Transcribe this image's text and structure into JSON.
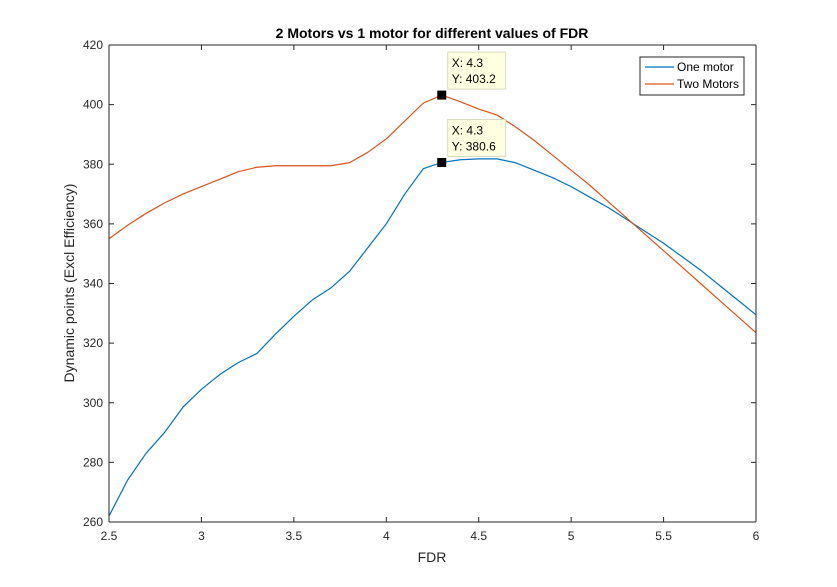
{
  "chart_data": {
    "type": "line",
    "title": "2 Motors vs 1 motor for different values of FDR",
    "xlabel": "FDR",
    "ylabel": "Dynamic points (Excl Efficiency)",
    "xlim": [
      2.5,
      6
    ],
    "ylim": [
      260,
      420
    ],
    "xticks": [
      2.5,
      3,
      3.5,
      4,
      4.5,
      5,
      5.5,
      6
    ],
    "xtick_labels": [
      "2.5",
      "3",
      "3.5",
      "4",
      "4.5",
      "5",
      "5.5",
      "6"
    ],
    "yticks": [
      260,
      280,
      300,
      320,
      340,
      360,
      380,
      400,
      420
    ],
    "ytick_labels": [
      "260",
      "280",
      "300",
      "320",
      "340",
      "360",
      "380",
      "400",
      "420"
    ],
    "grid": false,
    "legend_position": "top-right",
    "x": [
      2.5,
      2.6,
      2.7,
      2.8,
      2.9,
      3.0,
      3.1,
      3.2,
      3.3,
      3.4,
      3.5,
      3.6,
      3.7,
      3.8,
      3.9,
      4.0,
      4.1,
      4.2,
      4.3,
      4.4,
      4.5,
      4.6,
      4.7,
      4.8,
      4.9,
      5.0,
      5.1,
      5.2,
      5.3,
      5.4,
      5.5,
      5.6,
      5.7,
      5.8,
      5.9,
      6.0
    ],
    "series": [
      {
        "name": "One motor",
        "color": "#0072BD",
        "values": [
          262,
          274,
          283,
          290,
          298.5,
          304.5,
          309.5,
          313.5,
          316.5,
          323,
          329,
          334.5,
          338.5,
          344,
          352,
          360,
          370,
          378.5,
          380.6,
          381.5,
          381.8,
          381.8,
          380.5,
          378,
          375.5,
          372.5,
          369,
          365.5,
          361.5,
          357.5,
          353.5,
          349,
          344.5,
          339.5,
          334.5,
          329.5
        ]
      },
      {
        "name": "Two Motors",
        "color": "#D95319",
        "values": [
          355,
          359.5,
          363.5,
          367,
          370,
          372.5,
          375,
          377.5,
          379,
          379.5,
          379.5,
          379.5,
          379.5,
          380.5,
          384,
          388.5,
          394.5,
          400.5,
          403.2,
          401,
          398.5,
          396.5,
          392.5,
          388,
          383,
          378,
          373,
          367.5,
          362,
          356.5,
          351,
          345.5,
          340,
          334.5,
          329,
          323.5
        ]
      }
    ],
    "annotations": [
      {
        "series": "Two Motors",
        "x": 4.3,
        "y": 403.2,
        "label_x": "X: 4.3",
        "label_y": "Y: 403.2"
      },
      {
        "series": "One motor",
        "x": 4.3,
        "y": 380.6,
        "label_x": "X: 4.3",
        "label_y": "Y: 380.6"
      }
    ]
  }
}
